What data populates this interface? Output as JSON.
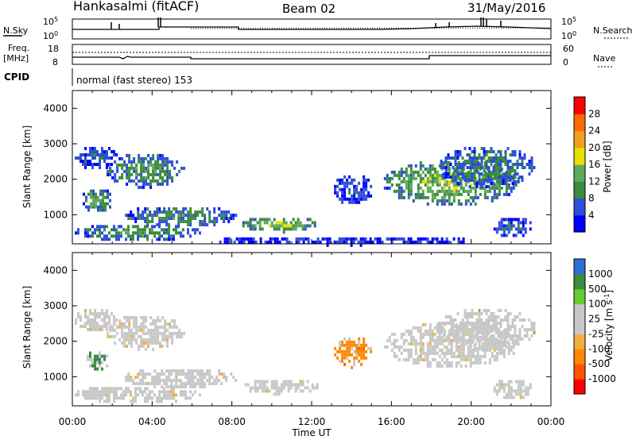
{
  "header": {
    "station": "Hankasalmi (fitACF)",
    "beam": "Beam 02",
    "date": "31/May/2016"
  },
  "top_panels": {
    "nsky_label": "N.Sky",
    "nsky_max": "10^5",
    "nsky_min": "10^0",
    "nsearch_label": "N.Search",
    "nsearch_max": "10^5",
    "nsearch_min": "10^0",
    "freq_label_1": "Freq.",
    "freq_label_2": "[MHz]",
    "freq_ticks": [
      "18",
      "8"
    ],
    "nave_label": "Nave",
    "nave_ticks": [
      "60",
      "0"
    ],
    "cpid_label": "CPID",
    "cpid_text": "normal (fast stereo) 153"
  },
  "chart_data": [
    {
      "type": "heatmap",
      "name": "power",
      "xlabel": "",
      "ylabel": "Slant Range [km]",
      "xlim": [
        0,
        24
      ],
      "ylim": [
        180,
        4500
      ],
      "y_ticks": [
        1000,
        2000,
        3000,
        4000
      ],
      "colorbar": {
        "label": "Power [dB]",
        "tick_labels": [
          "28",
          "24",
          "20",
          "16",
          "12",
          "8",
          "4"
        ],
        "colors": [
          "#0000ff",
          "#2e4fd6",
          "#3b8c3b",
          "#5fa85f",
          "#e8e000",
          "#f0a020",
          "#ff6a00",
          "#ff0000"
        ]
      },
      "regions": [
        {
          "t": [
            0.0,
            2.2
          ],
          "r": [
            2300,
            3000
          ],
          "lvl": 1.1
        },
        {
          "t": [
            1.6,
            5.6
          ],
          "r": [
            1800,
            2800
          ],
          "lvl": 2.2
        },
        {
          "t": [
            0.4,
            2.0
          ],
          "r": [
            1100,
            1800
          ],
          "lvl": 2.6
        },
        {
          "t": [
            0.0,
            6.4
          ],
          "r": [
            300,
            800
          ],
          "lvl": 2.3
        },
        {
          "t": [
            2.4,
            8.2
          ],
          "r": [
            700,
            1300
          ],
          "lvl": 2.0
        },
        {
          "t": [
            8.4,
            12.3
          ],
          "r": [
            550,
            1000
          ],
          "lvl": 3.4
        },
        {
          "t": [
            13.0,
            15.0
          ],
          "r": [
            1300,
            2200
          ],
          "lvl": 1.0
        },
        {
          "t": [
            15.5,
            22.4
          ],
          "r": [
            1300,
            2600
          ],
          "lvl": 3.2
        },
        {
          "t": [
            18.2,
            23.2
          ],
          "r": [
            1800,
            3000
          ],
          "lvl": 1.8
        },
        {
          "t": [
            21.0,
            23.0
          ],
          "r": [
            400,
            1000
          ],
          "lvl": 1.2
        },
        {
          "t": [
            7.0,
            20.0
          ],
          "r": [
            180,
            450
          ],
          "lvl": 0.5
        }
      ]
    },
    {
      "type": "heatmap",
      "name": "velocity",
      "xlabel": "Time UT",
      "ylabel": "Slant Range [km]",
      "xlim": [
        0,
        24
      ],
      "ylim": [
        180,
        4500
      ],
      "x_tick_labels": [
        "00:00",
        "04:00",
        "08:00",
        "12:00",
        "16:00",
        "20:00",
        "00:00"
      ],
      "y_ticks": [
        1000,
        2000,
        3000,
        4000
      ],
      "colorbar": {
        "label": "Velocity [m s^-1]",
        "tick_labels": [
          "1000",
          "500",
          "100",
          "25",
          "-25",
          "-100",
          "-500",
          "-1000"
        ],
        "colors": [
          "#ff0000",
          "#ff5500",
          "#ff8800",
          "#f0b040",
          "#c8c8c8",
          "#c8c8c8",
          "#66cc33",
          "#3b8c3b",
          "#2e6fd6"
        ]
      },
      "regions": [
        {
          "t": [
            0.0,
            2.2
          ],
          "r": [
            2300,
            3000
          ],
          "lvl": 4
        },
        {
          "t": [
            1.6,
            5.6
          ],
          "r": [
            1800,
            2800
          ],
          "lvl": 4
        },
        {
          "t": [
            0.6,
            1.8
          ],
          "r": [
            1200,
            1800
          ],
          "lvl": 7
        },
        {
          "t": [
            0.0,
            6.4
          ],
          "r": [
            300,
            800
          ],
          "lvl": 4
        },
        {
          "t": [
            2.4,
            8.2
          ],
          "r": [
            700,
            1300
          ],
          "lvl": 4
        },
        {
          "t": [
            8.4,
            12.3
          ],
          "r": [
            550,
            1000
          ],
          "lvl": 4
        },
        {
          "t": [
            13.0,
            15.0
          ],
          "r": [
            1300,
            2200
          ],
          "lvl": 2
        },
        {
          "t": [
            15.5,
            22.4
          ],
          "r": [
            1300,
            2600
          ],
          "lvl": 4
        },
        {
          "t": [
            18.2,
            23.2
          ],
          "r": [
            1800,
            3000
          ],
          "lvl": 5
        },
        {
          "t": [
            21.0,
            23.0
          ],
          "r": [
            400,
            1000
          ],
          "lvl": 4
        }
      ]
    }
  ]
}
